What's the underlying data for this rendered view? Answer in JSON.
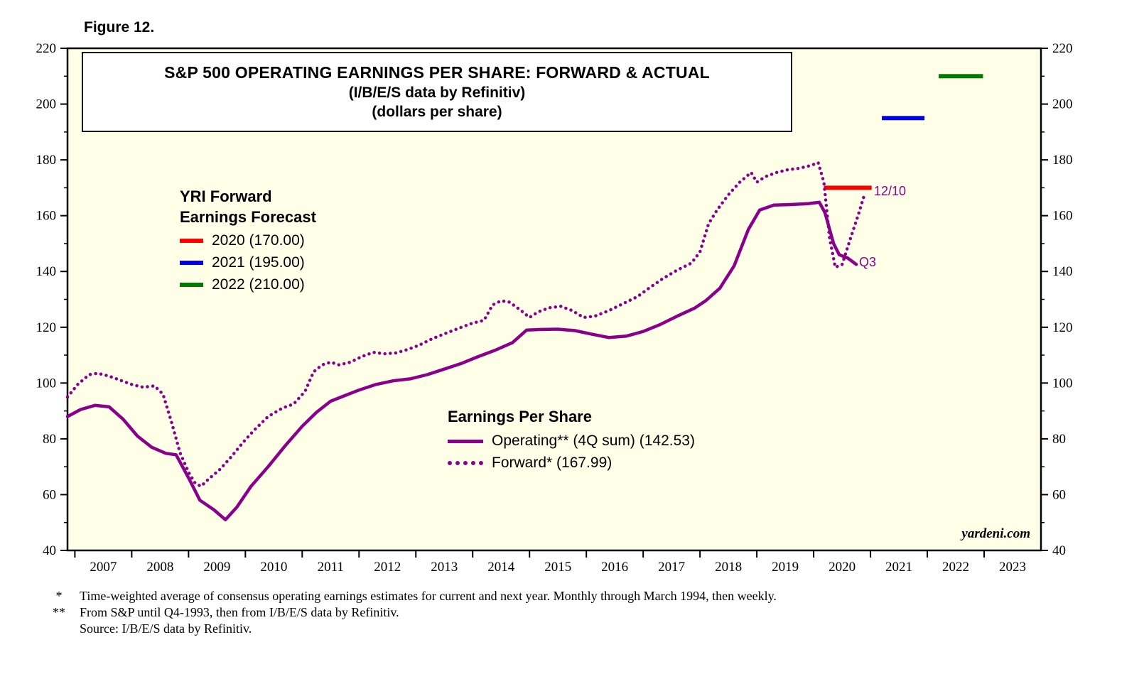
{
  "figure_label": "Figure 12.",
  "title": {
    "line1": "S&P 500 OPERATING EARNINGS PER SHARE: FORWARD & ACTUAL",
    "line2": "(I/B/E/S data by Refinitiv)",
    "line3": "(dollars per share)"
  },
  "forecast_legend": {
    "title_line1": "YRI Forward",
    "title_line2": "Earnings Forecast",
    "entries": [
      {
        "label": "2020 (170.00)",
        "color": "#FF0000"
      },
      {
        "label": "2021 (195.00)",
        "color": "#0000EE"
      },
      {
        "label": "2022 (210.00)",
        "color": "#007A00"
      }
    ]
  },
  "eps_legend": {
    "title": "Earnings Per Share",
    "entries": [
      {
        "label": "Operating** (4Q sum) (142.53)",
        "style": "solid"
      },
      {
        "label": "Forward* (167.99)",
        "style": "dotted"
      }
    ]
  },
  "annotations": {
    "forward_date": "12/10",
    "actual_quarter": "Q3"
  },
  "watermark": "yardeni.com",
  "footnotes": [
    {
      "marker": "*",
      "text": "Time-weighted average of consensus operating earnings estimates for current and next year. Monthly through March 1994, then weekly."
    },
    {
      "marker": "**",
      "text": "From S&P until Q4-1993, then from I/B/E/S data by Refinitiv."
    },
    {
      "marker": "",
      "text": "Source: I/B/E/S data by Refinitiv."
    }
  ],
  "chart_data": {
    "type": "line",
    "title": "S&P 500 Operating Earnings Per Share: Forward & Actual (dollars per share)",
    "plot_bg": "#FFFFE8",
    "axis_color": "#000000",
    "ylim": [
      40,
      220
    ],
    "y_tick_interval": 20,
    "xlim": [
      2006.87,
      2024.0
    ],
    "x_tick_years": [
      2007,
      2008,
      2009,
      2010,
      2011,
      2012,
      2013,
      2014,
      2015,
      2016,
      2017,
      2018,
      2019,
      2020,
      2021,
      2022,
      2023
    ],
    "legend_position": "inside",
    "grid": false,
    "series": [
      {
        "name": "Operating** (4Q sum)",
        "last_value": 142.53,
        "style": "solid",
        "color": "#8B008B",
        "points": [
          [
            2006.87,
            88
          ],
          [
            2007.1,
            90.5
          ],
          [
            2007.35,
            92
          ],
          [
            2007.6,
            91.5
          ],
          [
            2007.85,
            87
          ],
          [
            2008.1,
            81
          ],
          [
            2008.35,
            77
          ],
          [
            2008.6,
            74.8
          ],
          [
            2008.78,
            74.3
          ],
          [
            2009.0,
            66
          ],
          [
            2009.2,
            58
          ],
          [
            2009.45,
            54.5
          ],
          [
            2009.65,
            51
          ],
          [
            2009.85,
            55.5
          ],
          [
            2010.1,
            63
          ],
          [
            2010.4,
            70
          ],
          [
            2010.7,
            77.5
          ],
          [
            2011.0,
            84.5
          ],
          [
            2011.25,
            89.5
          ],
          [
            2011.5,
            93.5
          ],
          [
            2011.75,
            95.5
          ],
          [
            2012.0,
            97.5
          ],
          [
            2012.3,
            99.5
          ],
          [
            2012.6,
            100.8
          ],
          [
            2012.9,
            101.5
          ],
          [
            2013.2,
            103
          ],
          [
            2013.5,
            105
          ],
          [
            2013.8,
            107
          ],
          [
            2014.1,
            109.5
          ],
          [
            2014.4,
            111.8
          ],
          [
            2014.7,
            114.5
          ],
          [
            2014.95,
            119
          ],
          [
            2015.2,
            119.2
          ],
          [
            2015.5,
            119.3
          ],
          [
            2015.8,
            118.8
          ],
          [
            2016.1,
            117.5
          ],
          [
            2016.4,
            116.3
          ],
          [
            2016.7,
            116.8
          ],
          [
            2017.0,
            118.5
          ],
          [
            2017.3,
            121
          ],
          [
            2017.6,
            124
          ],
          [
            2017.9,
            126.8
          ],
          [
            2018.1,
            129.5
          ],
          [
            2018.35,
            134
          ],
          [
            2018.6,
            142
          ],
          [
            2018.85,
            155
          ],
          [
            2019.05,
            162
          ],
          [
            2019.3,
            163.8
          ],
          [
            2019.6,
            164
          ],
          [
            2019.9,
            164.3
          ],
          [
            2020.1,
            164.8
          ],
          [
            2020.2,
            161
          ],
          [
            2020.35,
            150
          ],
          [
            2020.45,
            146
          ],
          [
            2020.6,
            144.8
          ],
          [
            2020.75,
            142.53
          ]
        ]
      },
      {
        "name": "Forward*",
        "last_value": 167.99,
        "style": "dotted",
        "color": "#8B008B",
        "points": [
          [
            2006.87,
            95
          ],
          [
            2007.05,
            99.5
          ],
          [
            2007.25,
            103
          ],
          [
            2007.4,
            103.5
          ],
          [
            2007.6,
            102.5
          ],
          [
            2007.8,
            101
          ],
          [
            2008.0,
            99.5
          ],
          [
            2008.2,
            98.5
          ],
          [
            2008.4,
            99
          ],
          [
            2008.55,
            96
          ],
          [
            2008.7,
            86
          ],
          [
            2008.85,
            75
          ],
          [
            2009.0,
            68
          ],
          [
            2009.12,
            64
          ],
          [
            2009.22,
            63
          ],
          [
            2009.35,
            65.5
          ],
          [
            2009.55,
            69
          ],
          [
            2009.75,
            73.5
          ],
          [
            2009.95,
            78.5
          ],
          [
            2010.15,
            83
          ],
          [
            2010.4,
            88
          ],
          [
            2010.65,
            91
          ],
          [
            2010.85,
            92.5
          ],
          [
            2011.05,
            97
          ],
          [
            2011.2,
            104
          ],
          [
            2011.35,
            106.5
          ],
          [
            2011.5,
            107.5
          ],
          [
            2011.65,
            106.5
          ],
          [
            2011.85,
            107.5
          ],
          [
            2012.05,
            109.5
          ],
          [
            2012.25,
            111
          ],
          [
            2012.45,
            110.5
          ],
          [
            2012.65,
            110.8
          ],
          [
            2012.85,
            112
          ],
          [
            2013.05,
            113.5
          ],
          [
            2013.3,
            116
          ],
          [
            2013.55,
            118
          ],
          [
            2013.8,
            120
          ],
          [
            2014.0,
            121.5
          ],
          [
            2014.2,
            122.5
          ],
          [
            2014.35,
            128
          ],
          [
            2014.5,
            129.5
          ],
          [
            2014.65,
            129
          ],
          [
            2014.85,
            126
          ],
          [
            2015.0,
            123.5
          ],
          [
            2015.15,
            125.5
          ],
          [
            2015.35,
            127
          ],
          [
            2015.55,
            127.5
          ],
          [
            2015.75,
            126
          ],
          [
            2015.95,
            123.5
          ],
          [
            2016.15,
            124
          ],
          [
            2016.4,
            126
          ],
          [
            2016.65,
            128.5
          ],
          [
            2016.9,
            131
          ],
          [
            2017.1,
            134
          ],
          [
            2017.35,
            137.5
          ],
          [
            2017.6,
            140.5
          ],
          [
            2017.85,
            143
          ],
          [
            2018.0,
            147
          ],
          [
            2018.15,
            157
          ],
          [
            2018.3,
            162
          ],
          [
            2018.5,
            167.5
          ],
          [
            2018.7,
            172
          ],
          [
            2018.9,
            175.5
          ],
          [
            2019.0,
            172
          ],
          [
            2019.15,
            174
          ],
          [
            2019.35,
            175.5
          ],
          [
            2019.55,
            176.5
          ],
          [
            2019.75,
            177
          ],
          [
            2019.95,
            178
          ],
          [
            2020.08,
            179
          ],
          [
            2020.18,
            172
          ],
          [
            2020.28,
            152
          ],
          [
            2020.38,
            141.5
          ],
          [
            2020.5,
            142.5
          ],
          [
            2020.65,
            152
          ],
          [
            2020.78,
            160
          ],
          [
            2020.9,
            167.99
          ]
        ]
      }
    ],
    "forecast_bars": [
      {
        "name": "2020",
        "value": 170.0,
        "color": "#FF0000",
        "x_start": 2020.18,
        "x_end": 2021.02
      },
      {
        "name": "2021",
        "value": 195.0,
        "color": "#0000EE",
        "x_start": 2021.2,
        "x_end": 2021.95
      },
      {
        "name": "2022",
        "value": 210.0,
        "color": "#007A00",
        "x_start": 2022.2,
        "x_end": 2022.98
      }
    ]
  }
}
